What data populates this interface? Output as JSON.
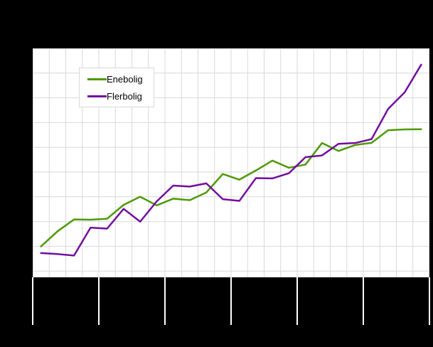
{
  "chart": {
    "background": "#000000",
    "plot_background": "#ffffff",
    "gridline_color": "#d9d9d9",
    "axis_tick_color": "#ffffff"
  },
  "legend": {
    "items": [
      {
        "label": "Enebolig",
        "color": "#4e9a06"
      },
      {
        "label": "Flerbolig",
        "color": "#720e9e"
      }
    ]
  },
  "chart_data": {
    "type": "line",
    "x": [
      1,
      2,
      3,
      4,
      5,
      6,
      7,
      8,
      9,
      10,
      11,
      12,
      13,
      14,
      15,
      16,
      17,
      18,
      19,
      20,
      21,
      22,
      23,
      24
    ],
    "series": [
      {
        "name": "Enebolig",
        "color": "#4e9a06",
        "values": [
          102.7,
          108.8,
          113.6,
          113.5,
          113.9,
          119.5,
          122.8,
          119.3,
          122.0,
          121.4,
          124.5,
          132.0,
          129.7,
          133.4,
          137.4,
          134.5,
          135.8,
          144.5,
          141.3,
          143.7,
          144.6,
          149.7,
          150.0,
          150.1
        ]
      },
      {
        "name": "Flerbolig",
        "color": "#720e9e",
        "values": [
          100.0,
          99.6,
          99.0,
          110.3,
          109.9,
          117.9,
          112.7,
          120.9,
          127.3,
          126.9,
          128.2,
          121.8,
          121.1,
          130.3,
          130.2,
          132.3,
          138.8,
          139.5,
          144.2,
          144.5,
          146.1,
          158.3,
          165.0,
          176.2
        ]
      }
    ],
    "ylim": [
      90.2,
      182.8
    ],
    "y_gridline_step": 10,
    "x_minor_divisions": 24,
    "x_major_divisions": 6,
    "grid": true,
    "legend_position": "top-left-inside",
    "axis_labels_visible": false
  }
}
